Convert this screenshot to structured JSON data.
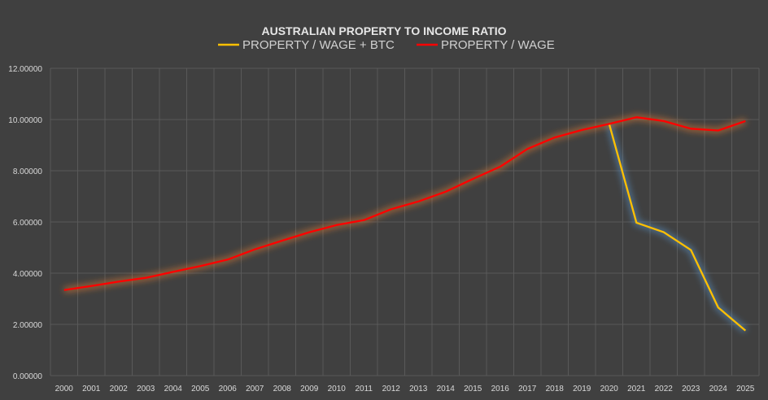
{
  "chart_data": {
    "type": "line",
    "title": "AUSTRALIAN PROPERTY TO INCOME RATIO",
    "xlabel": "",
    "ylabel": "",
    "ylim": [
      0,
      12
    ],
    "yticks": [
      "0.00000",
      "2.00000",
      "4.00000",
      "6.00000",
      "8.00000",
      "10.00000",
      "12.00000"
    ],
    "grid": true,
    "legend_position": "top",
    "categories": [
      "2000",
      "2001",
      "2002",
      "2003",
      "2004",
      "2005",
      "2006",
      "2007",
      "2008",
      "2009",
      "2010",
      "2011",
      "2012",
      "2013",
      "2014",
      "2015",
      "2016",
      "2017",
      "2018",
      "2019",
      "2020",
      "2021",
      "2022",
      "2023",
      "2024",
      "2025"
    ],
    "series": [
      {
        "name": "PROPERTY / WAGE + BTC",
        "color": "#ffc000",
        "glow": "#5b9bd5",
        "values": [
          null,
          null,
          null,
          null,
          null,
          null,
          null,
          null,
          null,
          null,
          null,
          null,
          null,
          null,
          null,
          null,
          null,
          null,
          null,
          null,
          9.83,
          5.97,
          5.6,
          4.9,
          2.66,
          1.76
        ]
      },
      {
        "name": "PROPERTY / WAGE",
        "color": "#ff0000",
        "glow": "#ed7d31",
        "values": [
          3.34,
          3.5,
          3.67,
          3.82,
          4.05,
          4.28,
          4.53,
          4.93,
          5.27,
          5.6,
          5.88,
          6.07,
          6.5,
          6.8,
          7.18,
          7.68,
          8.16,
          8.85,
          9.3,
          9.59,
          9.83,
          10.09,
          9.94,
          9.64,
          9.57,
          9.94
        ]
      }
    ]
  }
}
